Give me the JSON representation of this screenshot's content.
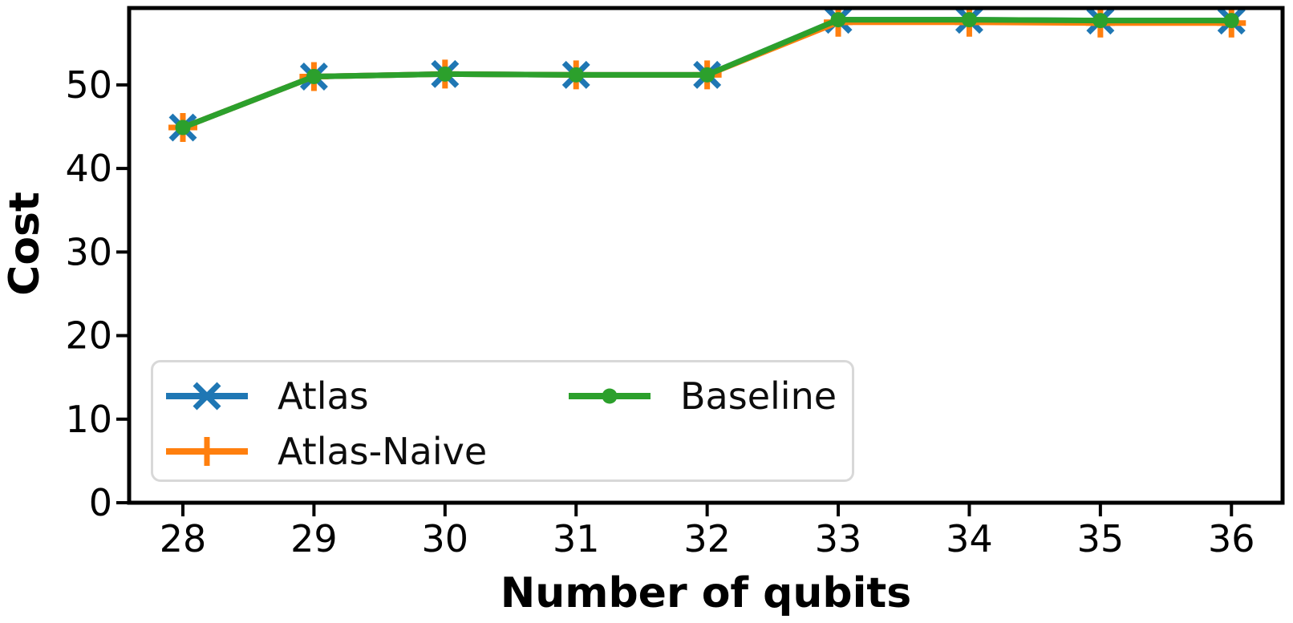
{
  "chart_data": {
    "type": "line",
    "title": "",
    "xlabel": "Number of qubits",
    "ylabel": "Cost",
    "x": [
      28,
      29,
      30,
      31,
      32,
      33,
      34,
      35,
      36
    ],
    "x_tick_labels": [
      "28",
      "29",
      "30",
      "31",
      "32",
      "33",
      "34",
      "35",
      "36"
    ],
    "y_ticks": [
      0,
      10,
      20,
      30,
      40,
      50
    ],
    "y_tick_labels": [
      "0",
      "10",
      "20",
      "30",
      "40",
      "50"
    ],
    "xlim": [
      27.59,
      36.39
    ],
    "ylim": [
      0,
      59.2
    ],
    "grid": false,
    "legend_position": "lower-left",
    "legend_columns": 2,
    "axis_color": "#000000",
    "background_color": "#ffffff",
    "series": [
      {
        "name": "Atlas",
        "color": "#1f77b4",
        "marker": "x",
        "values": [
          44.9,
          51.0,
          51.3,
          51.2,
          51.2,
          57.8,
          57.8,
          57.7,
          57.7
        ]
      },
      {
        "name": "Atlas-Naive",
        "color": "#ff7f0e",
        "marker": "plus",
        "values": [
          44.9,
          51.0,
          51.3,
          51.2,
          51.2,
          57.5,
          57.5,
          57.4,
          57.4
        ]
      },
      {
        "name": "Baseline",
        "color": "#2ca02c",
        "marker": "circle",
        "values": [
          44.9,
          51.0,
          51.3,
          51.2,
          51.2,
          57.8,
          57.8,
          57.7,
          57.7
        ]
      }
    ]
  }
}
